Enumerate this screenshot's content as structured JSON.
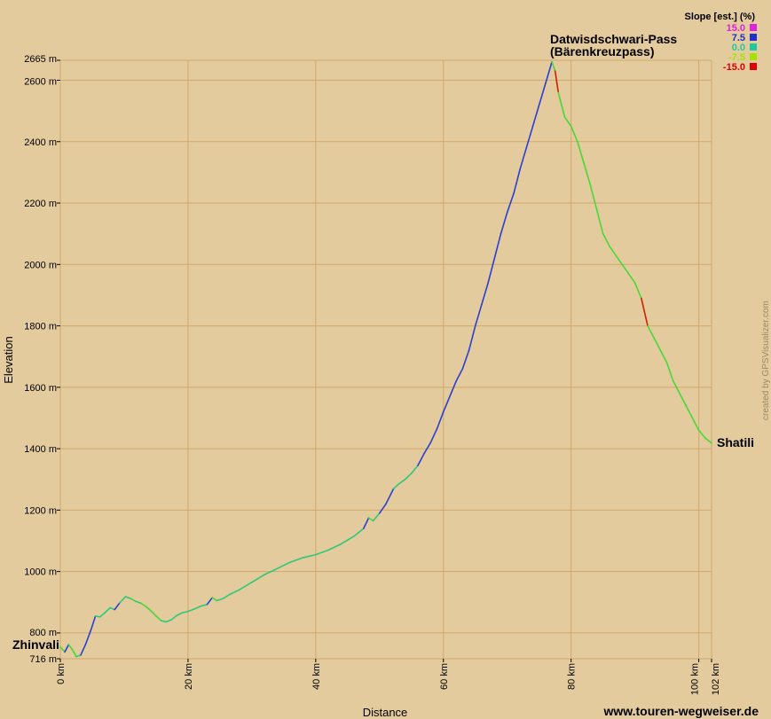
{
  "chart_data": {
    "type": "line",
    "xlabel": "Distance",
    "ylabel": "Elevation",
    "xlim": [
      0,
      102
    ],
    "ylim": [
      716,
      2665
    ],
    "grid": true,
    "x_ticks": [
      {
        "value": 0,
        "label": "0 km"
      },
      {
        "value": 20,
        "label": "20 km"
      },
      {
        "value": 40,
        "label": "40 km"
      },
      {
        "value": 60,
        "label": "60 km"
      },
      {
        "value": 80,
        "label": "80 km"
      },
      {
        "value": 100,
        "label": "100 km"
      },
      {
        "value": 102,
        "label": "102 km"
      }
    ],
    "y_ticks": [
      {
        "value": 716,
        "label": "716 m"
      },
      {
        "value": 800,
        "label": "800 m"
      },
      {
        "value": 1000,
        "label": "1000 m"
      },
      {
        "value": 1200,
        "label": "1200 m"
      },
      {
        "value": 1400,
        "label": "1400 m"
      },
      {
        "value": 1600,
        "label": "1600 m"
      },
      {
        "value": 1800,
        "label": "1800 m"
      },
      {
        "value": 2000,
        "label": "2000 m"
      },
      {
        "value": 2200,
        "label": "2200 m"
      },
      {
        "value": 2400,
        "label": "2400 m"
      },
      {
        "value": 2600,
        "label": "2600 m"
      },
      {
        "value": 2665,
        "label": "2665 m"
      }
    ],
    "series": [
      {
        "x": [
          0,
          0.7,
          1.3,
          1.9,
          2.5,
          3.2,
          4,
          4.8,
          5.5,
          6.2,
          7,
          7.8,
          8.5,
          9.3,
          10.2,
          11,
          11.8,
          12.6,
          13.4,
          14.2,
          15,
          15.8,
          16.6,
          17.4,
          18.2,
          19,
          20,
          21,
          22,
          23,
          23.8,
          24.5,
          25.5,
          26.5,
          28,
          30,
          32,
          34,
          36,
          38,
          40,
          42,
          44,
          46,
          47.5,
          48.3,
          49,
          50,
          51,
          52.2,
          53,
          54,
          55,
          56,
          57,
          58,
          59,
          60,
          61,
          62,
          63,
          64,
          65,
          66,
          67,
          68,
          69,
          70,
          71,
          72,
          73,
          74,
          75,
          76,
          77,
          77.5,
          78,
          79,
          80,
          81,
          82,
          83,
          84,
          85,
          86,
          87,
          88,
          89,
          90,
          91,
          92,
          93,
          94,
          95,
          96,
          97,
          98,
          99,
          100,
          101,
          102
        ],
        "y": [
          755,
          738,
          762,
          745,
          723,
          728,
          765,
          810,
          855,
          852,
          866,
          882,
          876,
          898,
          918,
          912,
          903,
          897,
          886,
          872,
          855,
          840,
          836,
          843,
          856,
          865,
          870,
          878,
          887,
          893,
          915,
          905,
          912,
          925,
          940,
          965,
          990,
          1010,
          1030,
          1045,
          1055,
          1070,
          1090,
          1115,
          1140,
          1175,
          1165,
          1190,
          1220,
          1270,
          1285,
          1300,
          1320,
          1345,
          1385,
          1420,
          1465,
          1520,
          1570,
          1620,
          1660,
          1720,
          1800,
          1870,
          1940,
          2020,
          2100,
          2170,
          2230,
          2310,
          2380,
          2450,
          2520,
          2590,
          2660,
          2630,
          2560,
          2480,
          2450,
          2400,
          2330,
          2260,
          2180,
          2100,
          2060,
          2030,
          2000,
          1970,
          1940,
          1890,
          1800,
          1760,
          1720,
          1680,
          1620,
          1580,
          1540,
          1500,
          1460,
          1435,
          1418
        ]
      }
    ],
    "annotations": [
      {
        "text": "Zhinvali",
        "x": 0,
        "y": 755
      },
      {
        "text": "Datwisdschwari-Pass",
        "x": 76.8,
        "y": 2665
      },
      {
        "text": "(Bärenkreuzpass)",
        "x": 76.8,
        "y": 2665
      },
      {
        "text": "Shatili",
        "x": 102,
        "y": 1418
      }
    ],
    "slope_legend": {
      "title": "Slope [est.] (%)",
      "entries": [
        {
          "label": "15.0",
          "color": "#e020e0"
        },
        {
          "label": "7.5",
          "color": "#2030c8"
        },
        {
          "label": "0.0",
          "color": "#20c8a0"
        },
        {
          "label": "-7.5",
          "color": "#a8e000"
        },
        {
          "label": "-15.0",
          "color": "#e00000"
        }
      ],
      "placement": "top-right"
    }
  },
  "credit": "created by GPSVisualizer.com",
  "website": "www.touren-wegweiser.de",
  "colors": {
    "background": "#e3cb9d",
    "grid": "#d2a86c",
    "ascent": "#2a40d0",
    "flat": "#30c878",
    "descent": "#48d838",
    "steep_descent": "#d02000"
  }
}
